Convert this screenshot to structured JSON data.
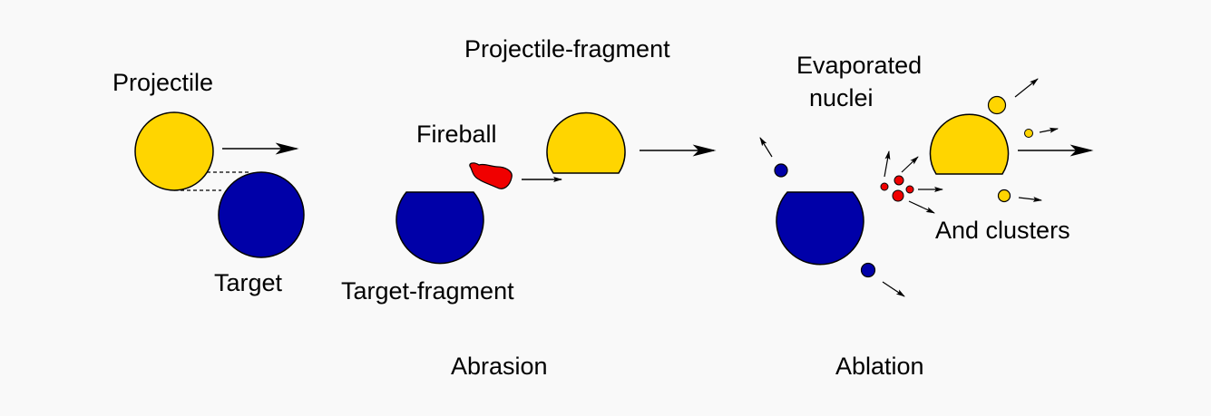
{
  "labels": {
    "projectile": "Projectile",
    "target": "Target",
    "projectile_fragment": "Projectile-fragment",
    "fireball": "Fireball",
    "target_fragment": "Target-fragment",
    "evaporated_line1": "Evaporated",
    "evaporated_line2": "nuclei",
    "and_clusters": "And clusters",
    "abrasion": "Abrasion",
    "ablation": "Ablation"
  },
  "colors": {
    "projectile": "#FFD500",
    "target": "#0000A8",
    "fireball": "#F00000",
    "outline": "#000000",
    "background": "#F9F9F9"
  }
}
